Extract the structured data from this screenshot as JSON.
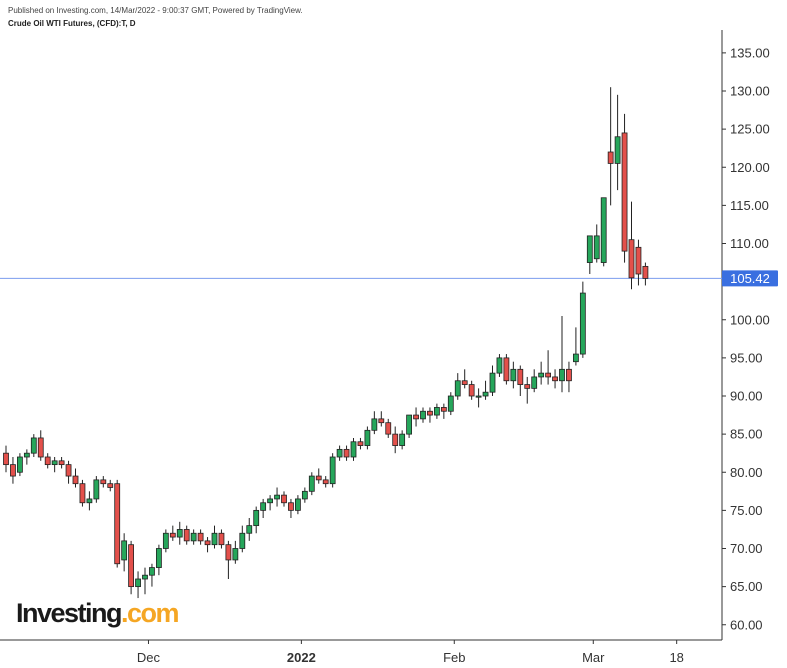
{
  "header": {
    "published": "Published on Investing.com, 14/Mar/2022 - 9:00:37 GMT, Powered by TradingView.",
    "chart_title": "Crude Oil WTI Futures, (CFD):T, D"
  },
  "logo": {
    "text": "Investing",
    "suffix": ".com"
  },
  "colors": {
    "up": "#26a65b",
    "down": "#e3504b",
    "line": "#2962ff",
    "price_badge": "#3a6fe0"
  },
  "chart_data": {
    "type": "candlestick",
    "title": "Crude Oil WTI Futures, (CFD):T, D",
    "ylim": [
      58,
      138
    ],
    "yticks": [
      "135.00",
      "130.00",
      "125.00",
      "120.00",
      "115.00",
      "110.00",
      "105.00",
      "100.00",
      "95.00",
      "90.00",
      "85.00",
      "80.00",
      "75.00",
      "70.00",
      "65.00",
      "60.00"
    ],
    "ytick_values": [
      135,
      130,
      125,
      120,
      115,
      110,
      105,
      100,
      95,
      90,
      85,
      80,
      75,
      70,
      65,
      60
    ],
    "xticks": [
      {
        "label": "Dec",
        "index": 20.5,
        "bold": false
      },
      {
        "label": "2022",
        "index": 42.5,
        "bold": true
      },
      {
        "label": "Feb",
        "index": 64.5,
        "bold": false
      },
      {
        "label": "Mar",
        "index": 84.5,
        "bold": false
      },
      {
        "label": "18",
        "index": 96.5,
        "bold": false
      }
    ],
    "last_price": 105.42,
    "last_price_label": "105.42",
    "candles": [
      [
        82.5,
        83.5,
        80.0,
        81.0
      ],
      [
        81.0,
        82.0,
        78.5,
        79.5
      ],
      [
        80.0,
        82.5,
        79.5,
        82.0
      ],
      [
        82.0,
        83.0,
        81.0,
        82.5
      ],
      [
        82.5,
        85.0,
        82.0,
        84.5
      ],
      [
        84.5,
        85.5,
        81.5,
        82.0
      ],
      [
        82.0,
        82.5,
        80.5,
        81.0
      ],
      [
        81.0,
        82.0,
        80.0,
        81.5
      ],
      [
        81.5,
        82.0,
        80.5,
        81.0
      ],
      [
        81.0,
        81.5,
        78.5,
        79.5
      ],
      [
        79.5,
        80.5,
        78.0,
        78.5
      ],
      [
        78.5,
        79.0,
        75.5,
        76.0
      ],
      [
        76.0,
        77.5,
        75.0,
        76.5
      ],
      [
        76.5,
        79.5,
        76.0,
        79.0
      ],
      [
        79.0,
        79.5,
        78.0,
        78.5
      ],
      [
        78.5,
        79.0,
        77.5,
        78.0
      ],
      [
        78.5,
        79.0,
        67.5,
        68.0
      ],
      [
        68.5,
        72.0,
        67.0,
        71.0
      ],
      [
        70.5,
        71.0,
        64.0,
        65.0
      ],
      [
        65.0,
        67.0,
        63.5,
        66.0
      ],
      [
        66.0,
        67.5,
        64.0,
        66.5
      ],
      [
        66.5,
        68.0,
        65.0,
        67.5
      ],
      [
        67.5,
        70.5,
        66.5,
        70.0
      ],
      [
        70.0,
        72.5,
        69.5,
        72.0
      ],
      [
        72.0,
        73.0,
        71.0,
        71.5
      ],
      [
        71.5,
        73.5,
        70.5,
        72.5
      ],
      [
        72.5,
        73.0,
        70.5,
        71.0
      ],
      [
        71.0,
        72.5,
        70.5,
        72.0
      ],
      [
        72.0,
        72.5,
        70.5,
        71.0
      ],
      [
        71.0,
        71.5,
        69.5,
        70.5
      ],
      [
        70.5,
        73.0,
        70.0,
        72.0
      ],
      [
        72.0,
        72.5,
        70.0,
        70.5
      ],
      [
        70.5,
        71.0,
        66.0,
        68.5
      ],
      [
        68.5,
        71.0,
        68.0,
        70.0
      ],
      [
        70.0,
        73.0,
        69.5,
        72.0
      ],
      [
        72.0,
        74.0,
        71.0,
        73.0
      ],
      [
        73.0,
        75.5,
        72.0,
        75.0
      ],
      [
        75.0,
        76.5,
        74.0,
        76.0
      ],
      [
        76.0,
        77.0,
        75.0,
        76.5
      ],
      [
        76.5,
        78.0,
        75.5,
        77.0
      ],
      [
        77.0,
        77.5,
        75.5,
        76.0
      ],
      [
        76.0,
        76.5,
        74.0,
        75.0
      ],
      [
        75.0,
        77.0,
        74.5,
        76.5
      ],
      [
        76.5,
        78.0,
        76.0,
        77.5
      ],
      [
        77.5,
        80.0,
        77.0,
        79.5
      ],
      [
        79.5,
        80.5,
        78.5,
        79.0
      ],
      [
        79.0,
        79.5,
        78.0,
        78.5
      ],
      [
        78.5,
        82.5,
        78.0,
        82.0
      ],
      [
        82.0,
        83.5,
        81.5,
        83.0
      ],
      [
        83.0,
        83.5,
        81.5,
        82.0
      ],
      [
        82.0,
        84.5,
        81.5,
        84.0
      ],
      [
        84.0,
        84.5,
        83.0,
        83.5
      ],
      [
        83.5,
        86.0,
        83.0,
        85.5
      ],
      [
        85.5,
        88.0,
        85.0,
        87.0
      ],
      [
        87.0,
        88.0,
        86.0,
        86.5
      ],
      [
        86.5,
        87.0,
        84.5,
        85.0
      ],
      [
        85.0,
        86.0,
        82.5,
        83.5
      ],
      [
        83.5,
        85.5,
        83.0,
        85.0
      ],
      [
        85.0,
        87.5,
        84.5,
        87.5
      ],
      [
        87.5,
        88.5,
        86.0,
        87.0
      ],
      [
        87.0,
        88.5,
        86.5,
        88.0
      ],
      [
        88.0,
        88.5,
        86.5,
        87.5
      ],
      [
        87.5,
        89.0,
        87.0,
        88.5
      ],
      [
        88.5,
        89.0,
        87.0,
        88.0
      ],
      [
        88.0,
        90.5,
        87.5,
        90.0
      ],
      [
        90.0,
        93.0,
        89.5,
        92.0
      ],
      [
        92.0,
        93.5,
        91.0,
        91.5
      ],
      [
        91.5,
        92.0,
        89.5,
        90.0
      ],
      [
        90.0,
        91.0,
        88.5,
        90.0
      ],
      [
        90.0,
        92.0,
        89.5,
        90.5
      ],
      [
        90.5,
        94.0,
        90.0,
        93.0
      ],
      [
        93.0,
        95.5,
        92.5,
        95.0
      ],
      [
        95.0,
        95.5,
        91.5,
        92.0
      ],
      [
        92.0,
        94.5,
        91.0,
        93.5
      ],
      [
        93.5,
        94.0,
        90.0,
        91.5
      ],
      [
        91.5,
        92.5,
        89.0,
        91.0
      ],
      [
        91.0,
        93.5,
        90.5,
        92.5
      ],
      [
        92.5,
        94.5,
        91.5,
        93.0
      ],
      [
        93.0,
        96.0,
        91.5,
        92.5
      ],
      [
        92.5,
        93.5,
        91.0,
        92.0
      ],
      [
        92.0,
        100.5,
        90.5,
        93.5
      ],
      [
        93.5,
        94.5,
        90.5,
        92.0
      ],
      [
        94.5,
        99.0,
        94.0,
        95.5
      ],
      [
        95.5,
        105.0,
        95.0,
        103.5
      ],
      [
        107.5,
        111.0,
        106.0,
        111.0
      ],
      [
        108.0,
        112.5,
        107.5,
        111.0
      ],
      [
        107.5,
        116.0,
        107.0,
        116.0
      ],
      [
        122.0,
        130.5,
        115.0,
        120.5
      ],
      [
        120.5,
        129.5,
        117.0,
        124.0
      ],
      [
        124.5,
        127.0,
        107.5,
        109.0
      ],
      [
        110.5,
        115.5,
        104.0,
        105.5
      ],
      [
        109.5,
        110.5,
        104.5,
        106.0
      ],
      [
        107.0,
        107.5,
        104.5,
        105.42
      ]
    ]
  }
}
